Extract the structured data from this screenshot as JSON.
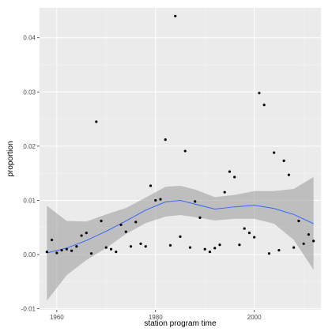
{
  "chart_data": {
    "type": "scatter",
    "title": "",
    "xlabel": "station program time",
    "ylabel": "proportion",
    "xlim": [
      1956.5,
      2013.5
    ],
    "ylim": [
      -0.0102,
      0.0455
    ],
    "x_ticks": [
      1960,
      1980,
      2000
    ],
    "x_tick_labels": [
      "1960",
      "1980",
      "2000"
    ],
    "y_ticks": [
      -0.01,
      0.0,
      0.01,
      0.02,
      0.03,
      0.04
    ],
    "y_tick_labels": [
      "-0.01",
      "0.00",
      "0.01",
      "0.02",
      "0.03",
      "0.04"
    ],
    "grid": true,
    "colors": {
      "panel": "#ebebeb",
      "grid": "#ffffff",
      "point": "#000000",
      "smooth_line": "#3366ff",
      "ribbon": "#999999"
    },
    "points": [
      {
        "x": 1958,
        "y": 0.0005
      },
      {
        "x": 1959,
        "y": 0.0027
      },
      {
        "x": 1960,
        "y": 0.0003
      },
      {
        "x": 1961,
        "y": 0.0008
      },
      {
        "x": 1962,
        "y": 0.001
      },
      {
        "x": 1963,
        "y": 0.0007
      },
      {
        "x": 1964,
        "y": 0.0015
      },
      {
        "x": 1965,
        "y": 0.0035
      },
      {
        "x": 1966,
        "y": 0.004
      },
      {
        "x": 1967,
        "y": 0.0002
      },
      {
        "x": 1968,
        "y": 0.0245
      },
      {
        "x": 1969,
        "y": 0.0062
      },
      {
        "x": 1970,
        "y": 0.0013
      },
      {
        "x": 1971,
        "y": 0.001
      },
      {
        "x": 1972,
        "y": 0.0005
      },
      {
        "x": 1973,
        "y": 0.0055
      },
      {
        "x": 1974,
        "y": 0.0042
      },
      {
        "x": 1975,
        "y": 0.0015
      },
      {
        "x": 1976,
        "y": 0.006
      },
      {
        "x": 1977,
        "y": 0.002
      },
      {
        "x": 1978,
        "y": 0.0015
      },
      {
        "x": 1979,
        "y": 0.0127
      },
      {
        "x": 1980,
        "y": 0.01
      },
      {
        "x": 1981,
        "y": 0.0102
      },
      {
        "x": 1982,
        "y": 0.0212
      },
      {
        "x": 1983,
        "y": 0.0017
      },
      {
        "x": 1984,
        "y": 0.044
      },
      {
        "x": 1985,
        "y": 0.0033
      },
      {
        "x": 1986,
        "y": 0.0191
      },
      {
        "x": 1987,
        "y": 0.0013
      },
      {
        "x": 1988,
        "y": 0.0098
      },
      {
        "x": 1989,
        "y": 0.0068
      },
      {
        "x": 1990,
        "y": 0.001
      },
      {
        "x": 1991,
        "y": 0.0005
      },
      {
        "x": 1992,
        "y": 0.0012
      },
      {
        "x": 1993,
        "y": 0.0018
      },
      {
        "x": 1994,
        "y": 0.0115
      },
      {
        "x": 1995,
        "y": 0.0153
      },
      {
        "x": 1996,
        "y": 0.0143
      },
      {
        "x": 1997,
        "y": 0.0018
      },
      {
        "x": 1998,
        "y": 0.0048
      },
      {
        "x": 1999,
        "y": 0.004
      },
      {
        "x": 2000,
        "y": 0.0032
      },
      {
        "x": 2001,
        "y": 0.0298
      },
      {
        "x": 2002,
        "y": 0.0276
      },
      {
        "x": 2003,
        "y": 0.0002
      },
      {
        "x": 2004,
        "y": 0.0188
      },
      {
        "x": 2005,
        "y": 0.0008
      },
      {
        "x": 2006,
        "y": 0.0173
      },
      {
        "x": 2007,
        "y": 0.0147
      },
      {
        "x": 2008,
        "y": 0.0013
      },
      {
        "x": 2009,
        "y": 0.0062
      },
      {
        "x": 2010,
        "y": 0.002
      },
      {
        "x": 2011,
        "y": 0.0037
      },
      {
        "x": 2012,
        "y": 0.0025
      }
    ],
    "smooth": {
      "x": [
        1958,
        1962,
        1966,
        1970,
        1974,
        1978,
        1982,
        1985,
        1988,
        1992,
        1996,
        2000,
        2004,
        2008,
        2012
      ],
      "y": [
        0.0003,
        0.0012,
        0.0026,
        0.0043,
        0.0062,
        0.0082,
        0.0097,
        0.01,
        0.0093,
        0.0084,
        0.0088,
        0.0091,
        0.0085,
        0.0074,
        0.0057
      ],
      "lower": [
        -0.0085,
        -0.0038,
        -0.001,
        0.0012,
        0.0038,
        0.0058,
        0.007,
        0.0073,
        0.0069,
        0.0063,
        0.0066,
        0.0066,
        0.0057,
        0.0027,
        -0.0028
      ],
      "upper": [
        0.009,
        0.0062,
        0.0061,
        0.0074,
        0.0086,
        0.0105,
        0.0125,
        0.0127,
        0.012,
        0.0106,
        0.011,
        0.0117,
        0.0117,
        0.0121,
        0.0143
      ]
    }
  }
}
